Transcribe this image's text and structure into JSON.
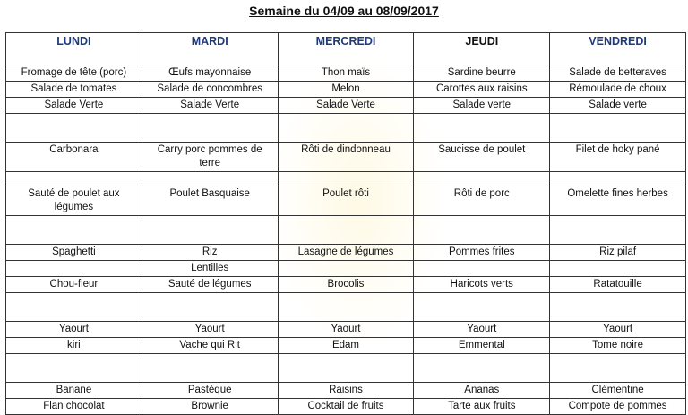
{
  "title": "Semaine du 04/09 au 08/09/2017",
  "days": [
    "LUNDI",
    "MARDI",
    "MERCREDI",
    "JEUDI",
    "VENDREDI"
  ],
  "day_colors": {
    "default": "#1f3a7a",
    "JEUDI": "#111111"
  },
  "rows": [
    {
      "type": "normal",
      "cells": [
        "Fromage de tête (porc)",
        "Œufs mayonnaise",
        "Thon maïs",
        "Sardine beurre",
        "Salade de betteraves"
      ]
    },
    {
      "type": "normal",
      "cells": [
        "Salade de tomates",
        "Salade de concombres",
        "Melon",
        "Carottes aux raisins",
        "Rémoulade de choux"
      ]
    },
    {
      "type": "normal",
      "cells": [
        "Salade Verte",
        "Salade Verte",
        "Salade Verte",
        "Salade verte",
        "Salade verte"
      ]
    },
    {
      "type": "tall",
      "cells": [
        "",
        "",
        "",
        "",
        ""
      ]
    },
    {
      "type": "tall",
      "cells": [
        "Carbonara",
        "Carry porc pommes de terre",
        "Rôti de dindonneau",
        "Saucisse de poulet",
        "Filet de hoky pané"
      ]
    },
    {
      "type": "gap",
      "cells": [
        "",
        "",
        "",
        "",
        ""
      ]
    },
    {
      "type": "tall",
      "cells": [
        "Sauté de poulet aux légumes",
        "Poulet Basquaise",
        "Poulet rôti",
        "Rôti de porc",
        "Omelette fines herbes"
      ]
    },
    {
      "type": "tall",
      "cells": [
        "",
        "",
        "",
        "",
        ""
      ]
    },
    {
      "type": "normal",
      "cells": [
        "Spaghetti",
        "Riz",
        "Lasagne de légumes",
        "Pommes frites",
        "Riz pilaf"
      ]
    },
    {
      "type": "normal",
      "cells": [
        "",
        "Lentilles",
        "",
        "",
        ""
      ]
    },
    {
      "type": "normal",
      "cells": [
        "Chou-fleur",
        "Sauté de légumes",
        "Brocolis",
        "Haricots verts",
        "Ratatouille"
      ]
    },
    {
      "type": "tall",
      "cells": [
        "",
        "",
        "",
        "",
        ""
      ]
    },
    {
      "type": "normal",
      "cells": [
        "Yaourt",
        "Yaourt",
        "Yaourt",
        "Yaourt",
        "Yaourt"
      ]
    },
    {
      "type": "normal",
      "cells": [
        "kiri",
        "Vache qui Rit",
        "Edam",
        "Emmental",
        "Tome noire"
      ]
    },
    {
      "type": "tall",
      "cells": [
        "",
        "",
        "",
        "",
        ""
      ]
    },
    {
      "type": "normal",
      "cells": [
        "Banane",
        "Pastèque",
        "Raisins",
        "Ananas",
        "Clémentine"
      ]
    },
    {
      "type": "normal",
      "cells": [
        "Flan chocolat",
        "Brownie",
        "Cocktail de fruits",
        "Tarte aux fruits",
        "Compote de pommes"
      ]
    }
  ]
}
